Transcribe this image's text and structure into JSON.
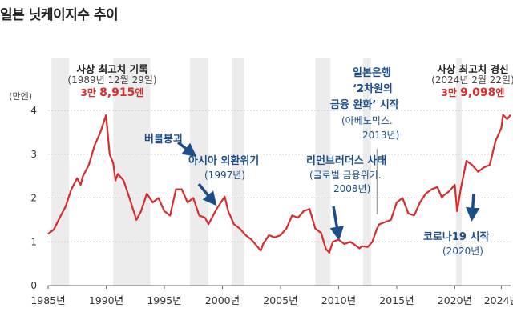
{
  "title": "일본 닛케이지수 추이",
  "chart_data": {
    "type": "line",
    "ylabel": "(만엔)",
    "ylim": [
      0,
      4
    ],
    "yticks": [
      "0",
      "1",
      "2",
      "3",
      "4"
    ],
    "xlim": [
      1985,
      2024.8
    ],
    "xticks": [
      {
        "x": 1985,
        "label": "1985년"
      },
      {
        "x": 1990,
        "label": "1990년"
      },
      {
        "x": 1995,
        "label": "1995년"
      },
      {
        "x": 2000,
        "label": "2000년"
      },
      {
        "x": 2005,
        "label": "2005년"
      },
      {
        "x": 2010,
        "label": "2010년"
      },
      {
        "x": 2015,
        "label": "2015년"
      },
      {
        "x": 2020,
        "label": "2020년"
      },
      {
        "x": 2024,
        "label": "2024년"
      }
    ],
    "shaded_periods": [
      [
        1985.3,
        1986.8
      ],
      [
        1990.6,
        1993.8
      ],
      [
        1997.2,
        1998.8
      ],
      [
        2000.8,
        2001.9
      ],
      [
        2008.0,
        2009.3
      ],
      [
        2012.1,
        2012.8
      ],
      [
        2020.1,
        2020.6
      ]
    ],
    "color": "#d62d2d",
    "series": [
      {
        "x": [
          1985,
          1985.5,
          1986,
          1986.5,
          1987,
          1987.5,
          1987.8,
          1988,
          1988.5,
          1989,
          1989.5,
          1989.99,
          1990.3,
          1990.6,
          1990.8,
          1991,
          1991.5,
          1992,
          1992.6,
          1993,
          1993.5,
          1994,
          1994.5,
          1995,
          1995.5,
          1996,
          1996.5,
          1997,
          1997.5,
          1998,
          1998.5,
          1998.8,
          1999,
          1999.5,
          2000.2,
          2000.5,
          2001,
          2001.5,
          2002,
          2002.5,
          2003.3,
          2003.5,
          2004,
          2004.5,
          2005,
          2005.5,
          2006,
          2006.5,
          2007,
          2007.5,
          2008,
          2008.5,
          2008.9,
          2009.2,
          2009.5,
          2010,
          2010.5,
          2011,
          2011.3,
          2011.8,
          2012,
          2012.5,
          2012.9,
          2013.3,
          2013.5,
          2014,
          2014.5,
          2015,
          2015.5,
          2016,
          2016.5,
          2017,
          2017.5,
          2018,
          2018.5,
          2018.9,
          2019,
          2019.5,
          2020,
          2020.2,
          2020.5,
          2021,
          2021.5,
          2022,
          2022.5,
          2023,
          2023.5,
          2024,
          2024.15,
          2024.5,
          2024.8
        ],
        "values": [
          1.18,
          1.28,
          1.55,
          1.8,
          2.2,
          2.45,
          2.3,
          2.5,
          2.75,
          3.2,
          3.5,
          3.89,
          3.0,
          2.8,
          2.4,
          2.55,
          2.4,
          2.0,
          1.5,
          1.7,
          2.1,
          1.9,
          2.0,
          1.7,
          1.6,
          2.2,
          2.2,
          1.9,
          2.0,
          1.6,
          1.55,
          1.4,
          1.5,
          1.75,
          2.03,
          1.7,
          1.4,
          1.3,
          1.15,
          1.05,
          0.8,
          0.95,
          1.15,
          1.1,
          1.15,
          1.3,
          1.6,
          1.55,
          1.7,
          1.75,
          1.3,
          1.2,
          0.84,
          0.75,
          1.0,
          1.05,
          0.95,
          1.0,
          0.95,
          0.85,
          0.9,
          0.88,
          1.0,
          1.3,
          1.4,
          1.45,
          1.5,
          1.9,
          2.0,
          1.65,
          1.6,
          1.9,
          2.1,
          2.2,
          2.25,
          2.0,
          2.05,
          2.15,
          2.3,
          1.7,
          2.2,
          2.85,
          2.75,
          2.6,
          2.7,
          2.75,
          3.3,
          3.6,
          3.9,
          3.8,
          3.9
        ]
      }
    ],
    "annotations": [
      {
        "title": "사상 최고치 기록",
        "date": "(1989년 12월 29일)",
        "value_prefix": "3만 ",
        "value_main": "8,915",
        "value_suffix": "엔"
      },
      {
        "title": "사상 최고치 경신",
        "date": "(2024년 2월 22일)",
        "value_prefix": "3만 ",
        "value_main": "9,098",
        "value_suffix": "엔"
      }
    ],
    "events": [
      {
        "label": "버블붕괴",
        "sub": ""
      },
      {
        "label": "아시아 외환위기",
        "sub": "(1997년)"
      },
      {
        "label": "리먼브러더스 사태",
        "sub": "(글로벌 금융위기.",
        "sub2": "2008년)"
      },
      {
        "label": "일본은행",
        "label2": "‘2차원의",
        "label3": "금융 완화’ 시작",
        "sub": "(아베노믹스.",
        "sub2": "2013년)"
      },
      {
        "label": "코로나19 시작",
        "sub": "(2020년)"
      }
    ]
  }
}
